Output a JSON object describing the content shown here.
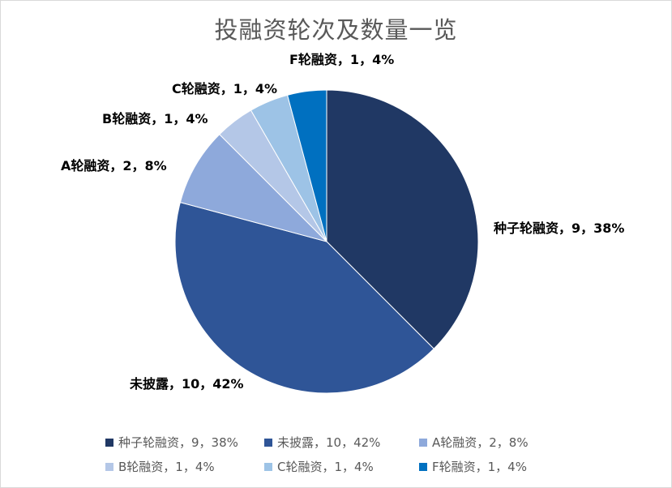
{
  "chart_data": {
    "type": "pie",
    "title": "投融资轮次及数量一览",
    "slices": [
      {
        "label": "种子轮融资，9，38%",
        "name": "种子轮融资",
        "value": 9,
        "percent": 38,
        "color": "#203864"
      },
      {
        "label": "未披露，10，42%",
        "name": "未披露",
        "value": 10,
        "percent": 42,
        "color": "#2F5597"
      },
      {
        "label": "A轮融资，2，8%",
        "name": "A轮融资",
        "value": 2,
        "percent": 8,
        "color": "#8EA9DB"
      },
      {
        "label": "B轮融资，1，4%",
        "name": "B轮融资",
        "value": 1,
        "percent": 4,
        "color": "#B4C7E7"
      },
      {
        "label": "C轮融资，1，4%",
        "name": "C轮融资",
        "value": 1,
        "percent": 4,
        "color": "#9DC3E6"
      },
      {
        "label": "F轮融资，1，4%",
        "name": "F轮融资",
        "value": 1,
        "percent": 4,
        "color": "#0070C0"
      }
    ],
    "legend_position": "bottom"
  }
}
